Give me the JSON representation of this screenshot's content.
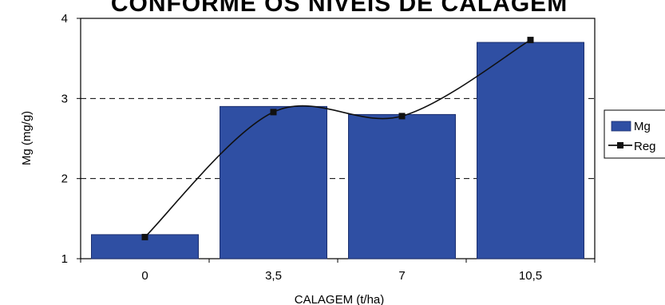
{
  "chart_data": {
    "type": "bar",
    "title": "CONFORME OS NÍVEIS DE CALAGEM",
    "xlabel": "CALAGEM (t/ha)",
    "ylabel": "Mg (mg/g)",
    "categories": [
      "0",
      "3,5",
      "7",
      "10,5"
    ],
    "ylim": [
      1,
      4
    ],
    "yticks": [
      "1",
      "2",
      "3",
      "4"
    ],
    "grid": "dashed horizontal",
    "legend_position": "right",
    "series": [
      {
        "name": "Mg",
        "kind": "bar",
        "color": "#2f4fa3",
        "values": [
          1.3,
          2.9,
          2.8,
          3.7
        ]
      },
      {
        "name": "Reg",
        "kind": "line",
        "color": "#111111",
        "values": [
          1.27,
          2.83,
          2.78,
          3.73
        ]
      }
    ]
  }
}
